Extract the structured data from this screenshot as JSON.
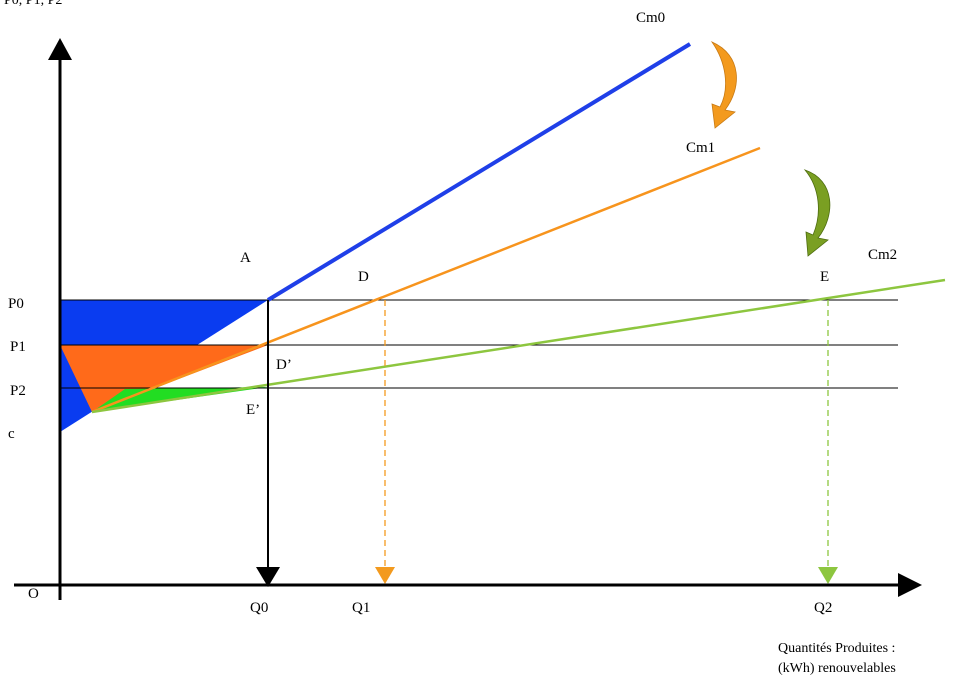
{
  "y_axis_title": "P0, P1, P2",
  "x_axis_title_line1": "Quantités Produites :",
  "x_axis_title_line2": "(kWh) renouvelables",
  "origin": "O",
  "price_labels": {
    "p0": "P0",
    "p1": "P1",
    "p2": "P2",
    "c": "c"
  },
  "quantity_labels": {
    "q0": "Q0",
    "q1": "Q1",
    "q2": "Q2"
  },
  "curves": [
    {
      "id": "cm0",
      "name": "Cm0",
      "color": "#1f3fe8"
    },
    {
      "id": "cm1",
      "name": "Cm1",
      "color": "#f7941d"
    },
    {
      "id": "cm2",
      "name": "Cm2",
      "color": "#8dc63f"
    }
  ],
  "points": {
    "a": "A",
    "d": "D",
    "d_prime": "D’",
    "e": "E",
    "e_prime": "E’"
  },
  "colors": {
    "axis": "#000000",
    "area_blue": "#0a3cf0",
    "area_orange": "#ff6a1a",
    "area_green": "#22dd22",
    "arrow_orange": "#f39a1e",
    "arrow_green": "#7a9f22"
  }
}
